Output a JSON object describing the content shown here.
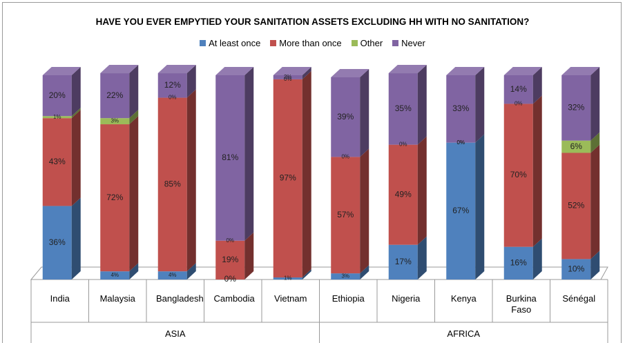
{
  "chart_data": {
    "type": "stacked_bar_3d",
    "title": "HAVE YOU EVER EMPYTIED YOUR SANITATION ASSETS EXCLUDING HH WITH NO SANITATION?",
    "categories": [
      "India",
      "Malaysia",
      "Bangladesh",
      "Cambodia",
      "Vietnam",
      "Ethiopia",
      "Nigeria",
      "Kenya",
      "Burkina Faso",
      "Sénégal"
    ],
    "groups": [
      {
        "name": "ASIA",
        "span": 5
      },
      {
        "name": "AFRICA",
        "span": 5
      }
    ],
    "legend": "top",
    "series": [
      {
        "name": "At least once",
        "color": "#4f81bd",
        "values": [
          36,
          4,
          4,
          0,
          1,
          3,
          17,
          67,
          16,
          10
        ],
        "value_labels": [
          "36%",
          "4%",
          "4%",
          "0%",
          "1%",
          "3%",
          "17%",
          "67%",
          "16%",
          "10%"
        ]
      },
      {
        "name": "More than once",
        "color": "#c0504d",
        "values": [
          43,
          72,
          85,
          19,
          97,
          57,
          49,
          0,
          70,
          52
        ],
        "value_labels": [
          "43%",
          "72%",
          "85%",
          "19%",
          "97%",
          "57%",
          "49%",
          "0%",
          "70%",
          "52%"
        ]
      },
      {
        "name": "Other",
        "color": "#9bbb59",
        "values": [
          1,
          3,
          0,
          0,
          0,
          0,
          0,
          0,
          0,
          6
        ],
        "value_labels": [
          "1%",
          "3%",
          "0%",
          "0%",
          "0%",
          "0%",
          "0%",
          "0%",
          "0%",
          "6%"
        ]
      },
      {
        "name": "Never",
        "color": "#8064a2",
        "values": [
          20,
          22,
          12,
          81,
          2,
          39,
          35,
          33,
          14,
          32
        ],
        "value_labels": [
          "20%",
          "22%",
          "12%",
          "81%",
          "2%",
          "39%",
          "35%",
          "33%",
          "14%",
          "32%"
        ]
      }
    ]
  }
}
